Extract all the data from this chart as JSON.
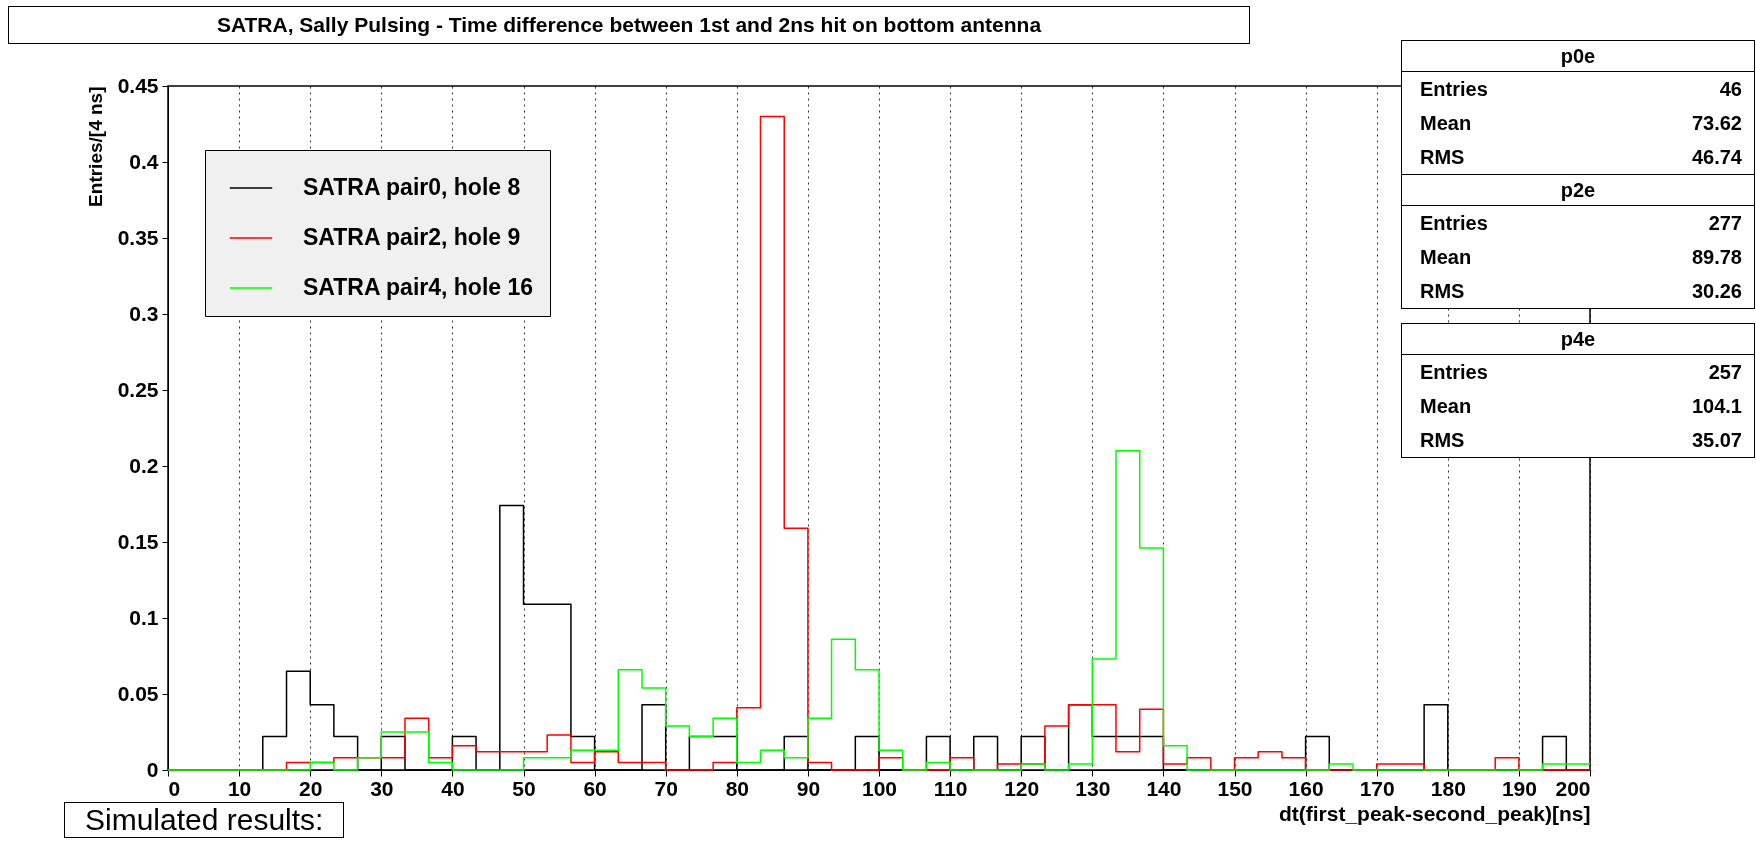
{
  "chart_data": {
    "type": "histogram",
    "title": "SATRA, Sally Pulsing - Time difference between 1st and 2ns hit on bottom antenna",
    "xlabel": "dt(first_peak-second_peak)[ns]",
    "ylabel": "Entries/[4 ns]",
    "bins": [
      0,
      3.33,
      6.67,
      10,
      13.33,
      16.67,
      20,
      23.33,
      26.67,
      30,
      33.33,
      36.67,
      40,
      43.33,
      46.67,
      50,
      53.33,
      56.67,
      60,
      63.33,
      66.67,
      70,
      73.33,
      76.67,
      80,
      83.33,
      86.67,
      90,
      93.33,
      96.67,
      100,
      103.33,
      106.67,
      110,
      113.33,
      116.67,
      120,
      123.33,
      126.67,
      130,
      133.33,
      136.67,
      140,
      143.33,
      146.67,
      150,
      153.33,
      156.67,
      160,
      163.33,
      166.67,
      170,
      173.33,
      176.67,
      180,
      183.33,
      186.67,
      190,
      193.33,
      196.67,
      200
    ],
    "series": [
      {
        "name": "SATRA pair0, hole 8",
        "color": "#000000",
        "values": [
          0,
          0,
          0,
          0,
          0.022,
          0.065,
          0.043,
          0.022,
          0,
          0.022,
          0,
          0,
          0.022,
          0,
          0.174,
          0.109,
          0.109,
          0.022,
          0,
          0,
          0.043,
          0,
          0.022,
          0.022,
          0,
          0,
          0.022,
          0,
          0,
          0.022,
          0,
          0,
          0.022,
          0,
          0.022,
          0,
          0.022,
          0,
          0.043,
          0.022,
          0.022,
          0.022,
          0,
          0,
          0,
          0,
          0,
          0,
          0.022,
          0,
          0,
          0,
          0,
          0.043,
          0,
          0,
          0,
          0,
          0.022,
          0
        ]
      },
      {
        "name": "SATRA pair2, hole 9",
        "color": "#ff0000",
        "values": [
          0,
          0,
          0,
          0,
          0,
          0.005,
          0.005,
          0.008,
          0.008,
          0.008,
          0.034,
          0.008,
          0.016,
          0.012,
          0.012,
          0.012,
          0.023,
          0.005,
          0.012,
          0.005,
          0.005,
          0,
          0,
          0.005,
          0.041,
          0.43,
          0.159,
          0.005,
          0,
          0,
          0.008,
          0,
          0,
          0.008,
          0,
          0.004,
          0.004,
          0.029,
          0.043,
          0.043,
          0.012,
          0.04,
          0.004,
          0.008,
          0,
          0.008,
          0.012,
          0.008,
          0,
          0,
          0,
          0.004,
          0.004,
          0,
          0,
          0,
          0.008,
          0,
          0,
          0
        ]
      },
      {
        "name": "SATRA pair4, hole 16",
        "color": "#00ff00",
        "values": [
          0,
          0,
          0,
          0,
          0,
          0,
          0.005,
          0,
          0.008,
          0.025,
          0.025,
          0.005,
          0,
          0,
          0,
          0.008,
          0.008,
          0.013,
          0.013,
          0.066,
          0.054,
          0.029,
          0.022,
          0.034,
          0.005,
          0.013,
          0.008,
          0.034,
          0.086,
          0.066,
          0.013,
          0,
          0.005,
          0,
          0,
          0,
          0.004,
          0,
          0.004,
          0.073,
          0.21,
          0.146,
          0.016,
          0,
          0,
          0,
          0,
          0,
          0,
          0.004,
          0,
          0,
          0,
          0,
          0,
          0,
          0,
          0,
          0.004,
          0.004
        ]
      }
    ],
    "xlim": [
      0,
      200
    ],
    "xticks": [
      0,
      10,
      20,
      30,
      40,
      50,
      60,
      70,
      80,
      90,
      100,
      110,
      120,
      130,
      140,
      150,
      160,
      170,
      180,
      190,
      200
    ],
    "ylim": [
      0,
      0.45
    ],
    "yticks": [
      0,
      0.05,
      0.1,
      0.15,
      0.2,
      0.25,
      0.3,
      0.35,
      0.4,
      0.45
    ],
    "grid": "x",
    "legend": "top left",
    "line_style": "solid",
    "annotations": [
      "p0e",
      "Entries 46",
      "Mean 73.62",
      "RMS 46.74",
      "p2e",
      "Entries 277",
      "Mean 89.78",
      "RMS 30.26",
      "p4e",
      "Entries 257",
      "Mean 104.1",
      "RMS 35.07",
      "Simulated results:"
    ]
  }
}
